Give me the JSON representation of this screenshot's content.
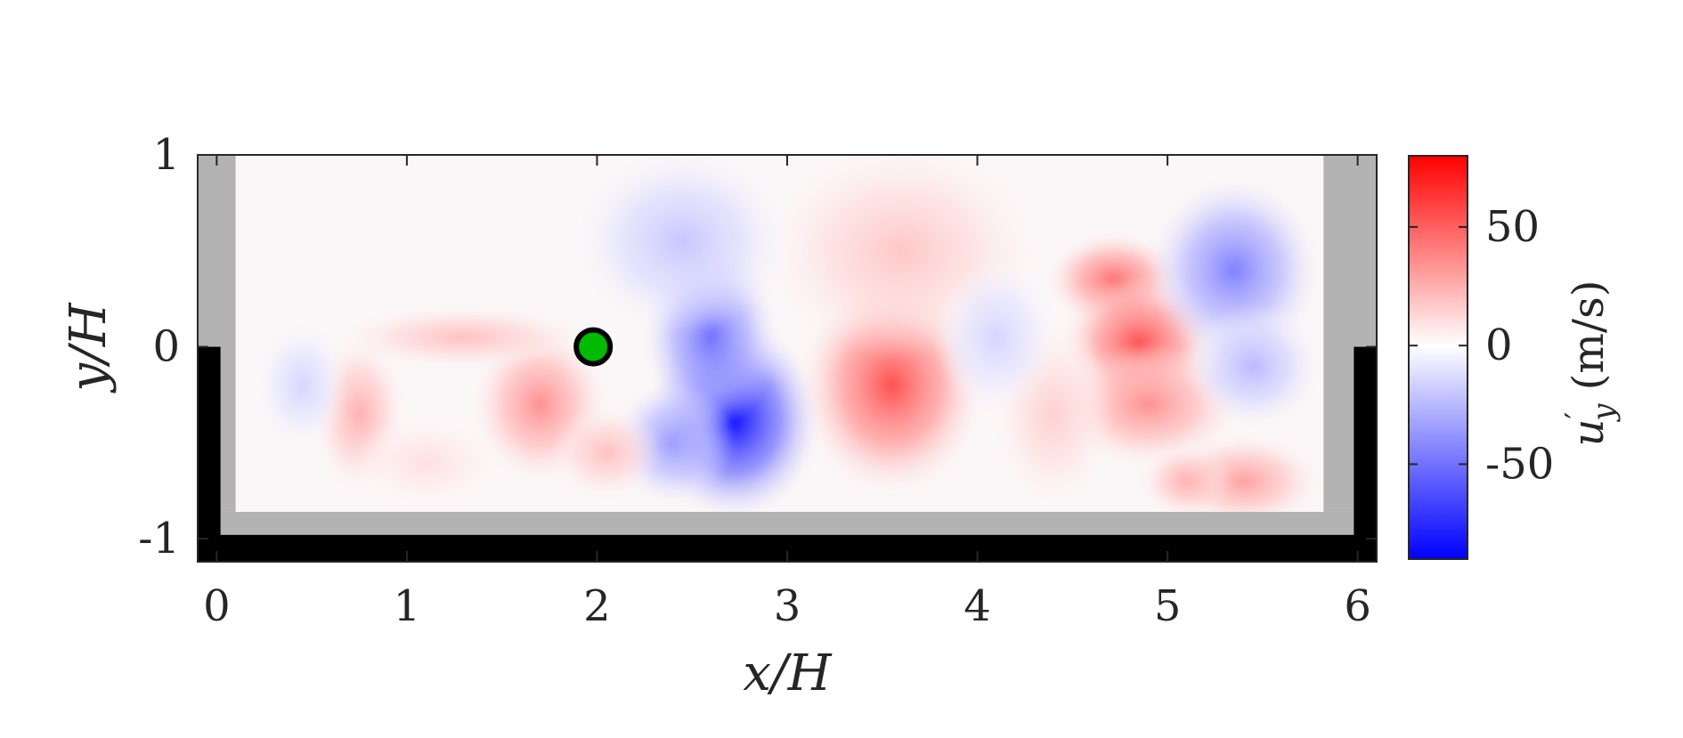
{
  "chart_data": {
    "type": "heatmap",
    "title": "",
    "xlabel": "x/H",
    "ylabel": "y/H",
    "xlim": [
      -0.1,
      6.1
    ],
    "ylim": [
      -1.12,
      1.0
    ],
    "x_ticks": [
      0,
      1,
      2,
      3,
      4,
      5,
      6
    ],
    "x_tick_labels": [
      "0",
      "1",
      "2",
      "3",
      "4",
      "5",
      "6"
    ],
    "y_ticks": [
      1,
      0,
      -1
    ],
    "y_tick_labels": [
      "1",
      "0",
      "-1"
    ],
    "data_extent": {
      "x": [
        0.1,
        5.82
      ],
      "y": [
        -0.86,
        1.0
      ]
    },
    "colormap": {
      "low": "#0000ff",
      "mid": "#ffffff",
      "high": "#ff0000"
    },
    "clim": [
      -90,
      80
    ],
    "colorbar": {
      "label_main": "u",
      "label_sup": "′",
      "label_sub": "y",
      "label_units": " (m/s)",
      "ticks": [
        50,
        0,
        -50
      ],
      "tick_labels": [
        "50",
        "0",
        "-50"
      ]
    },
    "marker": {
      "x": 1.98,
      "y": 0.0,
      "fill": "#00bb00",
      "edge": "#000000"
    },
    "walls": {
      "gray": "#b3b3b3",
      "black": "#000000"
    },
    "field_blobs": [
      {
        "x": 2.72,
        "y": -0.38,
        "sx": 0.28,
        "sy": 0.32,
        "v": -85
      },
      {
        "x": 2.6,
        "y": 0.05,
        "sx": 0.22,
        "sy": 0.3,
        "v": -50
      },
      {
        "x": 2.45,
        "y": 0.55,
        "sx": 0.35,
        "sy": 0.3,
        "v": -20
      },
      {
        "x": 2.4,
        "y": -0.5,
        "sx": 0.2,
        "sy": 0.2,
        "v": -35
      },
      {
        "x": 3.55,
        "y": -0.2,
        "sx": 0.3,
        "sy": 0.35,
        "v": 55
      },
      {
        "x": 3.6,
        "y": 0.5,
        "sx": 0.45,
        "sy": 0.35,
        "v": 18
      },
      {
        "x": 4.72,
        "y": 0.35,
        "sx": 0.22,
        "sy": 0.15,
        "v": 45
      },
      {
        "x": 4.85,
        "y": 0.02,
        "sx": 0.25,
        "sy": 0.22,
        "v": 55
      },
      {
        "x": 4.9,
        "y": -0.3,
        "sx": 0.3,
        "sy": 0.2,
        "v": 35
      },
      {
        "x": 5.35,
        "y": 0.4,
        "sx": 0.28,
        "sy": 0.3,
        "v": -45
      },
      {
        "x": 5.45,
        "y": -0.1,
        "sx": 0.22,
        "sy": 0.2,
        "v": -25
      },
      {
        "x": 5.4,
        "y": -0.7,
        "sx": 0.25,
        "sy": 0.15,
        "v": 30
      },
      {
        "x": 1.7,
        "y": -0.3,
        "sx": 0.22,
        "sy": 0.25,
        "v": 35
      },
      {
        "x": 0.75,
        "y": -0.35,
        "sx": 0.15,
        "sy": 0.25,
        "v": 25
      },
      {
        "x": 0.45,
        "y": -0.2,
        "sx": 0.15,
        "sy": 0.2,
        "v": -15
      },
      {
        "x": 1.3,
        "y": 0.05,
        "sx": 0.4,
        "sy": 0.1,
        "v": 20
      },
      {
        "x": 4.4,
        "y": -0.35,
        "sx": 0.2,
        "sy": 0.3,
        "v": 15
      },
      {
        "x": 4.1,
        "y": 0.05,
        "sx": 0.2,
        "sy": 0.25,
        "v": -15
      },
      {
        "x": 2.05,
        "y": -0.55,
        "sx": 0.18,
        "sy": 0.15,
        "v": 20
      },
      {
        "x": 5.1,
        "y": -0.7,
        "sx": 0.15,
        "sy": 0.12,
        "v": 25
      },
      {
        "x": 1.1,
        "y": -0.6,
        "sx": 0.25,
        "sy": 0.15,
        "v": 10
      }
    ]
  }
}
